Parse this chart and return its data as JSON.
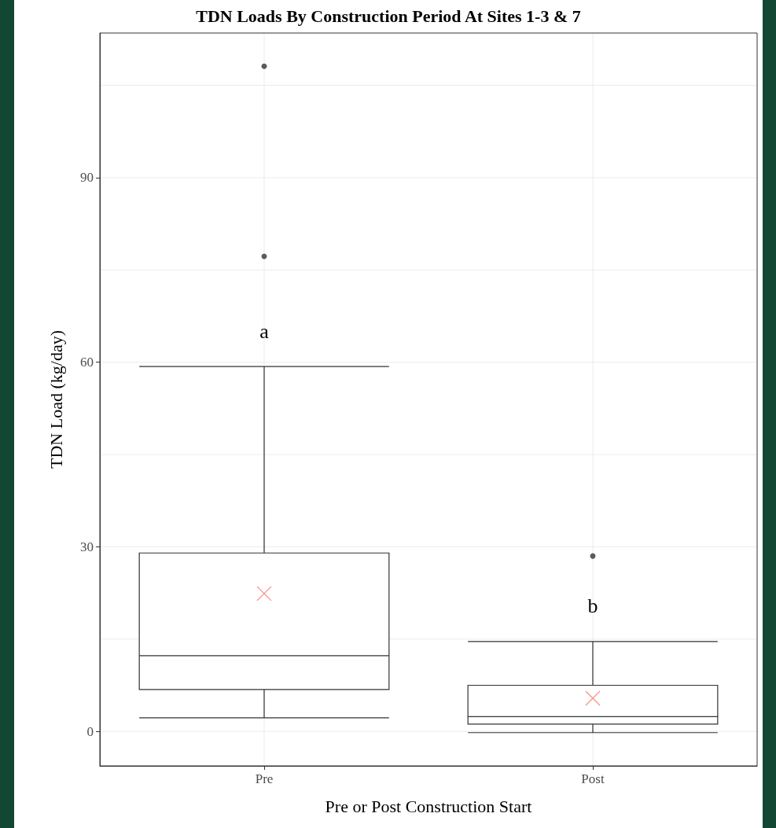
{
  "chart_data": {
    "type": "box",
    "title": "TDN Loads By Construction Period At Sites 1-3 & 7",
    "xlabel": "Pre or Post Construction Start",
    "ylabel": "TDN Load (kg/day)",
    "categories": [
      "Pre",
      "Post"
    ],
    "series": [
      {
        "color": "#333333",
        "boxes": [
          {
            "low": 2.2,
            "q1": 6.8,
            "median": 12.3,
            "q3": 29.0,
            "high": 59.3,
            "outliers": [
              77.2,
              108.1
            ]
          },
          {
            "low": -0.2,
            "q1": 1.2,
            "median": 2.4,
            "q3": 7.5,
            "high": 14.6,
            "outliers": [
              28.5
            ]
          }
        ]
      },
      {
        "type": "scatter",
        "color": "#f8766d",
        "marker": "cross",
        "x": [
          "Pre",
          "Post"
        ],
        "values": [
          22.4,
          5.4
        ]
      }
    ],
    "ylim": [
      -5.6,
      113.5
    ],
    "yticks": [
      0,
      {
        "value": 15,
        "label": null
      },
      30,
      {
        "value": 45,
        "label": null
      },
      60,
      {
        "value": 75,
        "label": null
      },
      90,
      {
        "value": 105,
        "label": null
      }
    ],
    "grid": true,
    "annotations": [
      "a",
      "b"
    ]
  }
}
